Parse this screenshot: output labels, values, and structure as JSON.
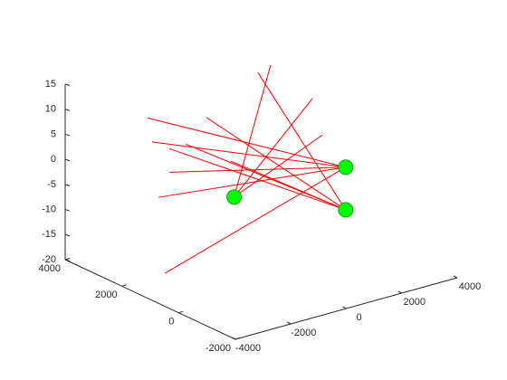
{
  "chart_data": {
    "type": "line3d",
    "xlim": [
      -4000,
      4000
    ],
    "ylim": [
      -2000,
      4000
    ],
    "zlim": [
      -20,
      15
    ],
    "xticks": [
      -4000,
      -2000,
      0,
      2000,
      4000
    ],
    "yticks": [
      -2000,
      0,
      2000,
      4000
    ],
    "zticks": [
      -20,
      -15,
      -10,
      -5,
      0,
      5,
      10,
      15
    ],
    "line_color": "#ff0000",
    "segments": [
      {
        "x": [
          -2560,
          1000
        ],
        "y": [
          2500,
          -1000
        ],
        "z": [
          10,
          4
        ]
      },
      {
        "x": [
          -2400,
          1000
        ],
        "y": [
          2500,
          -1000
        ],
        "z": [
          5,
          4
        ]
      },
      {
        "x": [
          -1780,
          1000
        ],
        "y": [
          2500,
          -1000
        ],
        "z": [
          -2,
          4
        ]
      },
      {
        "x": [
          -2170,
          1000
        ],
        "y": [
          2500,
          -1000
        ],
        "z": [
          -6.4,
          4
        ]
      },
      {
        "x": [
          -1940,
          1000
        ],
        "y": [
          2500,
          -1000
        ],
        "z": [
          -21.9,
          4
        ]
      },
      {
        "x": [
          -1780,
          1000
        ],
        "y": [
          2500,
          -1000
        ],
        "z": [
          2.7,
          -4.5
        ]
      },
      {
        "x": [
          -1190,
          1000
        ],
        "y": [
          2500,
          -1000
        ],
        "z": [
          2.7,
          -4.5
        ]
      },
      {
        "x": [
          -1980,
          1000
        ],
        "y": [
          1000,
          -1000
        ],
        "z": [
          13.2,
          -4.5
        ]
      },
      {
        "x": [
          -120,
          1000
        ],
        "y": [
          1000,
          -1000
        ],
        "z": [
          19.3,
          -4.5
        ]
      },
      {
        "x": [
          -1090,
          1000
        ],
        "y": [
          1000,
          -1000
        ],
        "z": [
          3.1,
          -4.5
        ]
      },
      {
        "x": [
          340,
          -2000
        ],
        "y": [
          1000,
          0
        ],
        "z": [
          20.1,
          0
        ]
      },
      {
        "x": [
          310,
          -2000
        ],
        "y": [
          -500,
          0
        ],
        "z": [
          17.4,
          0
        ]
      },
      {
        "x": [
          670,
          -2000
        ],
        "y": [
          -500,
          0
        ],
        "z": [
          9.6,
          0
        ]
      }
    ],
    "points": {
      "color": "#00ff00",
      "x": [
        -2000,
        1000,
        1000
      ],
      "y": [
        0,
        -1000,
        -1000
      ],
      "z": [
        0,
        4,
        -4.5
      ]
    }
  }
}
